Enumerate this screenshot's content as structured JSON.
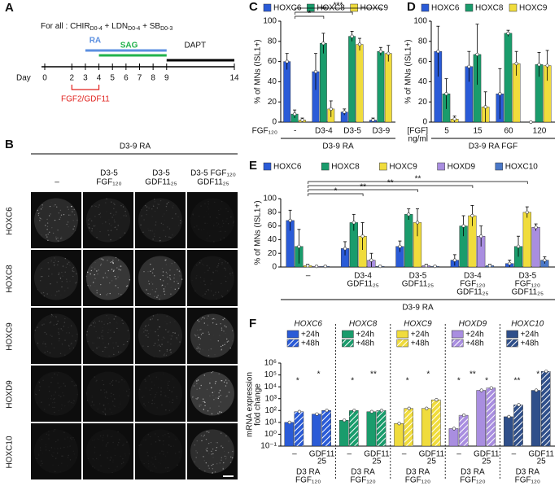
{
  "panel_a": {
    "panel": "A",
    "header": [
      "For all : CHIR",
      "D0-4",
      " + LDN",
      "D0-4",
      " + SB",
      "D0-3"
    ],
    "day_label": "Day",
    "days": [
      0,
      2,
      3,
      4,
      5,
      6,
      7,
      8,
      9,
      14
    ],
    "treatments": [
      {
        "name": "RA",
        "start": 3,
        "end": 9,
        "color": "#5b8fe0"
      },
      {
        "name": "SAG",
        "start": 4,
        "end": 9,
        "color": "#22b24c"
      },
      {
        "name": "DAPT",
        "start": 9,
        "end": 14,
        "color": "#000000"
      }
    ],
    "pulse": {
      "name": "FGF2/GDF11",
      "start": 2,
      "end": 4,
      "color": "#e0201c"
    }
  },
  "panel_b": {
    "panel": "B",
    "title": "D3-9 RA",
    "columns": [
      [
        "–"
      ],
      [
        "D3-5",
        "FGF₁₂₀"
      ],
      [
        "D3-5",
        "GDF11₂₅"
      ],
      [
        "D3-5 FGF₁₂₀",
        "GDF11₂₅"
      ]
    ],
    "rows": [
      "HOXC6",
      "HOXC8",
      "HOXC9",
      "HOXD9",
      "HOXC10"
    ]
  },
  "chart_data": [
    {
      "panel": "C",
      "type": "bar",
      "ylabel": "% of MNs (ISL1+)",
      "row_label": [
        "FGF₁₂₀"
      ],
      "categories": [
        "-",
        "D3-4",
        "D3-5",
        "D3-9"
      ],
      "group_label": "D3-9 RA",
      "ylim": [
        0,
        100
      ],
      "yticks": [
        0,
        20,
        40,
        60,
        80,
        100
      ],
      "series": [
        {
          "name": "HOXC6",
          "color": "#2a5bd7",
          "values": [
            60,
            50,
            10,
            2
          ],
          "errors": [
            8,
            18,
            3,
            2
          ]
        },
        {
          "name": "HOXC8",
          "color": "#1a9c6c",
          "values": [
            8,
            78,
            85,
            70
          ],
          "errors": [
            4,
            10,
            5,
            4
          ]
        },
        {
          "name": "HOXC9",
          "color": "#f0dc3c",
          "values": [
            2,
            13,
            77,
            68
          ],
          "errors": [
            2,
            8,
            6,
            8
          ]
        }
      ],
      "annotations": [
        "*",
        "**",
        "***"
      ]
    },
    {
      "panel": "D",
      "type": "bar",
      "ylabel": "% of MNs (ISL1+)",
      "row_label": [
        "[FGF]",
        "ng/ml"
      ],
      "categories": [
        "5",
        "15",
        "60",
        "120"
      ],
      "group_label": "D3-9 RA FGF",
      "ylim": [
        0,
        100
      ],
      "yticks": [
        0,
        20,
        40,
        60,
        80,
        100
      ],
      "series": [
        {
          "name": "HOXC6",
          "color": "#2a5bd7",
          "values": [
            70,
            55,
            28,
            0
          ],
          "errors": [
            25,
            15,
            25,
            0
          ]
        },
        {
          "name": "HOXC8",
          "color": "#1a9c6c",
          "values": [
            28,
            67,
            88,
            57
          ],
          "errors": [
            15,
            30,
            3,
            12
          ]
        },
        {
          "name": "HOXC9",
          "color": "#f0dc3c",
          "values": [
            3,
            15,
            58,
            56
          ],
          "errors": [
            3,
            15,
            12,
            15
          ]
        }
      ],
      "annotations": []
    },
    {
      "panel": "E",
      "type": "bar",
      "ylabel": "% of MNs  (ISL1+)",
      "row_label": [],
      "categories": [
        [
          "–"
        ],
        [
          "D3-4",
          "GDF11₂₅"
        ],
        [
          "D3-5",
          "GDF11₂₅"
        ],
        [
          "D3-4",
          "FGF₁₂₀",
          "GDF11₂₅"
        ],
        [
          "D3-5",
          "FGF₁₂₀",
          "GDF11₂₅"
        ]
      ],
      "group_label": "D3-9 RA",
      "ylim": [
        0,
        100
      ],
      "yticks": [
        0,
        20,
        40,
        60,
        80,
        100
      ],
      "series": [
        {
          "name": "HOXC6",
          "color": "#2a5bd7",
          "values": [
            68,
            27,
            30,
            10,
            5
          ],
          "errors": [
            15,
            10,
            8,
            8,
            5
          ]
        },
        {
          "name": "HOXC8",
          "color": "#1a9c6c",
          "values": [
            30,
            65,
            77,
            60,
            30
          ],
          "errors": [
            25,
            12,
            8,
            15,
            15
          ]
        },
        {
          "name": "HOXC9",
          "color": "#f0dc3c",
          "values": [
            2,
            45,
            65,
            75,
            80
          ],
          "errors": [
            2,
            20,
            20,
            15,
            8
          ]
        },
        {
          "name": "HOXD9",
          "color": "#a98ee0",
          "values": [
            1,
            10,
            2,
            45,
            58
          ],
          "errors": [
            1,
            10,
            2,
            15,
            5
          ]
        },
        {
          "name": "HOXC10",
          "color": "#4a78c8",
          "values": [
            1,
            1,
            1,
            2,
            10
          ],
          "errors": [
            1,
            1,
            1,
            2,
            5
          ]
        }
      ],
      "annotations": [
        "*",
        "**",
        "**",
        "**"
      ]
    },
    {
      "panel": "F",
      "type": "bar",
      "log_scale": true,
      "ylabel": [
        "mRNA expression",
        "fold change"
      ],
      "categories": [
        [
          "–"
        ],
        [
          "GDF11",
          "25"
        ]
      ],
      "group_label": [
        "D3 RA",
        "FGF₁₂₀"
      ],
      "ylim": [
        0.1,
        1000000
      ],
      "yticks": [
        {
          "value": 0.1,
          "label": "10⁻¹"
        },
        {
          "value": 1,
          "label": "10⁰"
        },
        {
          "value": 10,
          "label": "10¹"
        },
        {
          "value": 100,
          "label": "10²"
        },
        {
          "value": 1000,
          "label": "10³"
        },
        {
          "value": 10000,
          "label": "10⁴"
        },
        {
          "value": 100000,
          "label": "10⁵"
        },
        {
          "value": 1000000,
          "label": "10⁶"
        }
      ],
      "groups": [
        {
          "gene": "HOXC6",
          "color": "#2a5bd7",
          "series": [
            {
              "name": "+24h",
              "values": [
                10,
                50
              ]
            },
            {
              "name": "+48h",
              "values": [
                80,
                100
              ]
            }
          ],
          "annotations": [
            "*",
            "*"
          ]
        },
        {
          "gene": "HOXC8",
          "color": "#1a9c6c",
          "series": [
            {
              "name": "+24h",
              "values": [
                15,
                80
              ]
            },
            {
              "name": "+48h",
              "values": [
                100,
                100
              ]
            }
          ],
          "annotations": [
            "*",
            "**"
          ]
        },
        {
          "gene": "HOXC9",
          "color": "#f0dc3c",
          "series": [
            {
              "name": "+24h",
              "values": [
                8,
                150
              ]
            },
            {
              "name": "+48h",
              "values": [
                150,
                800
              ]
            }
          ],
          "annotations": [
            "*",
            "*"
          ]
        },
        {
          "gene": "HOXD9",
          "color": "#a98ee0",
          "series": [
            {
              "name": "+24h",
              "values": [
                3,
                5000
              ]
            },
            {
              "name": "+48h",
              "values": [
                40,
                8000
              ]
            }
          ],
          "annotations": [
            "*",
            "**",
            "*"
          ]
        },
        {
          "gene": "HOXC10",
          "color": "#2f4f8a",
          "series": [
            {
              "name": "+24h",
              "values": [
                30,
                5000
              ]
            },
            {
              "name": "+48h",
              "values": [
                300,
                200000
              ]
            }
          ],
          "annotations": [
            "**",
            "*"
          ]
        }
      ]
    }
  ]
}
